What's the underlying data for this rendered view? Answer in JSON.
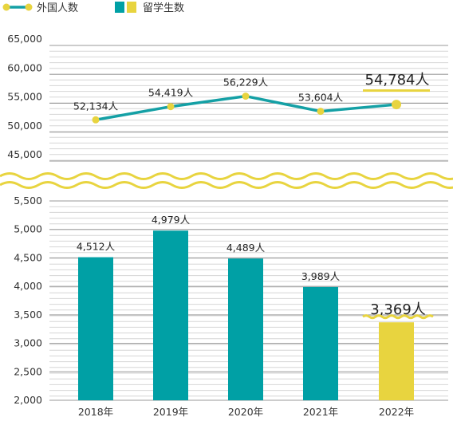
{
  "chart_data": {
    "type": "bar+line",
    "legend_position": "top-left",
    "legend": [
      {
        "label": "外国人数",
        "marker": "line-dot",
        "color": "#14a0a5"
      },
      {
        "label": "留学生数",
        "marker": "square-pair",
        "colors": [
          "#00a0a5",
          "#e8d43f"
        ]
      }
    ],
    "categories": [
      "2018年",
      "2019年",
      "2020年",
      "2021年",
      "2022年"
    ],
    "line_series": {
      "name": "外国人数",
      "values": [
        52134,
        54419,
        56229,
        53604,
        54784
      ],
      "labels": [
        "52,134人",
        "54,419人",
        "56,229人",
        "53,604人",
        "54,784人"
      ],
      "highlight_index": 4,
      "color": "#14a0a5",
      "marker_color": "#e8d43f",
      "axis_ticks": [
        "65,000",
        "60,000",
        "55,000",
        "50,000",
        "45,000"
      ],
      "ylim": [
        45000,
        65000
      ]
    },
    "bar_series": {
      "name": "留学生数",
      "values": [
        4512,
        4979,
        4489,
        3989,
        3369
      ],
      "labels": [
        "4,512人",
        "4,979人",
        "4,489人",
        "3,989人",
        "3,369人"
      ],
      "highlight_index": 4,
      "color": "#00a0a5",
      "highlight_color": "#e8d43f",
      "axis_ticks": [
        "5,500",
        "5,000",
        "4,500",
        "4,000",
        "3,500",
        "3,000",
        "2,500",
        "2,000"
      ],
      "ylim": [
        2000,
        5500
      ]
    },
    "axis_break": true,
    "grid": true
  }
}
